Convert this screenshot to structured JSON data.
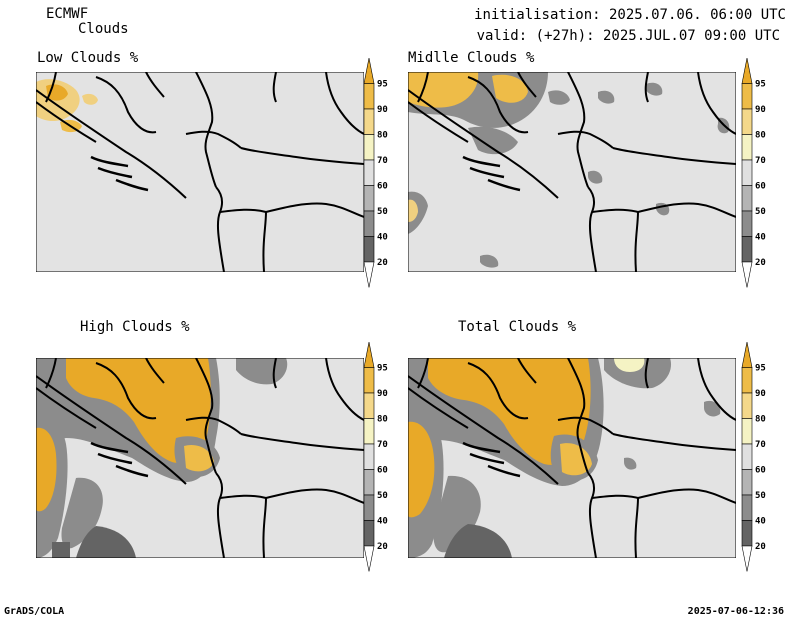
{
  "header": {
    "model": "ECMWF",
    "product": "Clouds",
    "initialisation": "initialisation: 2025.07.06. 06:00 UTC",
    "valid": "valid: (+27h): 2025.JUL.07 09:00 UTC"
  },
  "panels": [
    {
      "id": "low",
      "title": "Low Clouds %"
    },
    {
      "id": "middle",
      "title": "Midlle Clouds %"
    },
    {
      "id": "high",
      "title": "High Clouds %"
    },
    {
      "id": "total",
      "title": "Total Clouds %"
    }
  ],
  "colorbar": {
    "labels": [
      "95",
      "90",
      "80",
      "70",
      "60",
      "50",
      "40",
      "20"
    ],
    "colors": {
      "c95": "#e8a928",
      "c90": "#eebc48",
      "c80": "#f4d88a",
      "c70": "#f5f3c4",
      "c60": "#e0e0e0",
      "c50": "#b4b4b4",
      "c40": "#8c8c8c",
      "c20": "#646464"
    }
  },
  "footer": {
    "left": "GrADS/COLA",
    "right": "2025-07-06-12:36"
  }
}
